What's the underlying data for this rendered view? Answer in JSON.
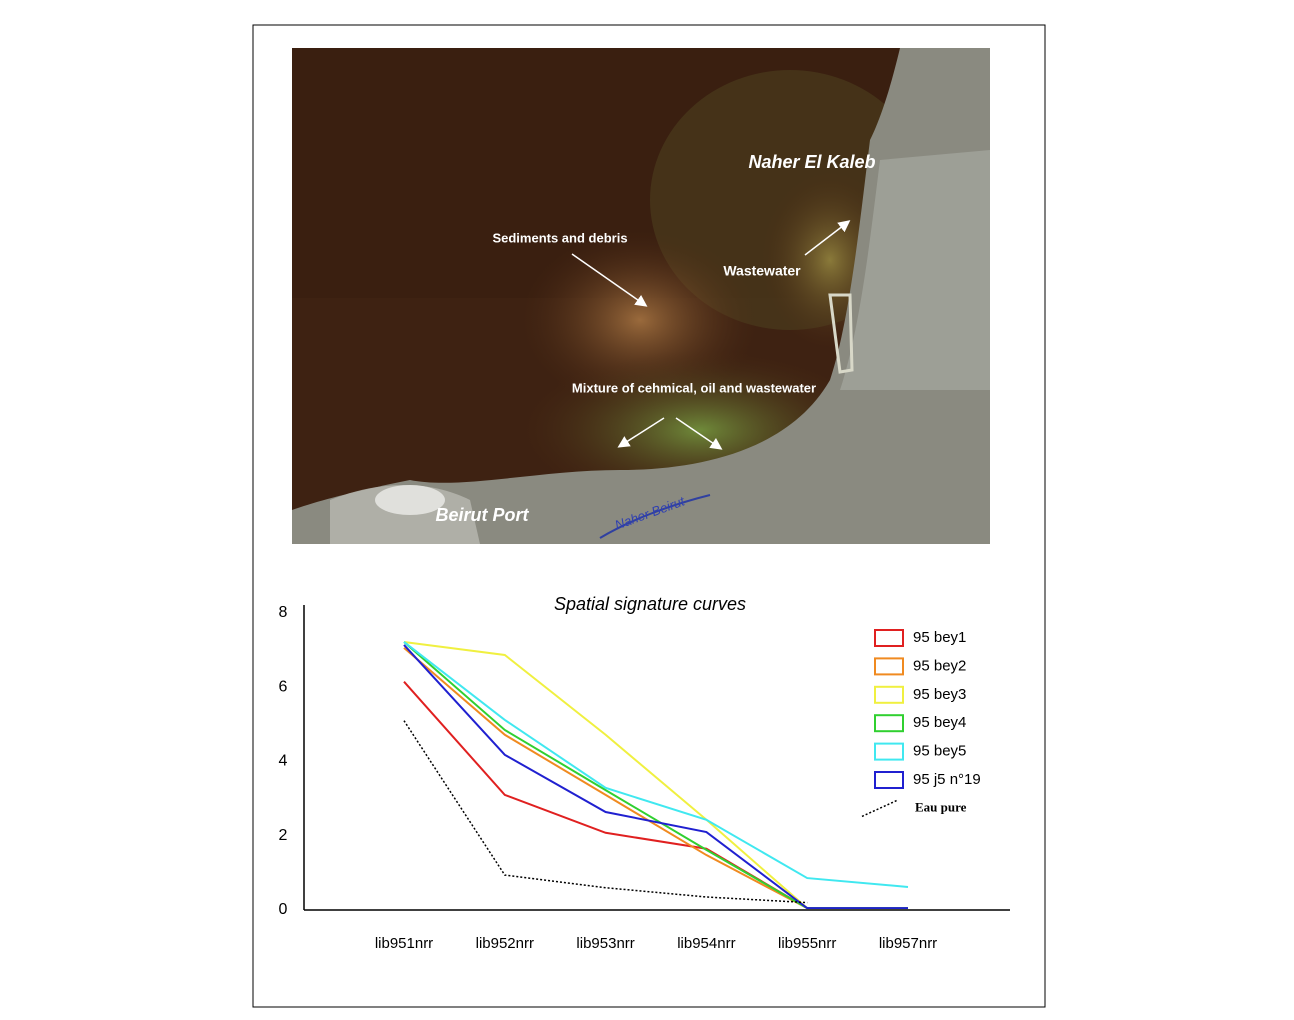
{
  "image_annotations": {
    "naher_el_kaleb": "Naher El Kaleb",
    "sediments": "Sediments and debris",
    "wastewater": "Wastewater",
    "mixture": "Mixture of cehmical, oil and wastewater",
    "beirut_port": "Beirut Port",
    "naher_beirut": "Naher Beirut"
  },
  "chart_data": {
    "type": "line",
    "title": "Spatial signature curves",
    "categories": [
      "lib951nrr",
      "lib952nrr",
      "lib953nrr",
      "lib954nrr",
      "lib955nrr",
      "lib957nrr"
    ],
    "ylim": [
      0,
      8
    ],
    "yticks": [
      0,
      2,
      4,
      6,
      8
    ],
    "grid": false,
    "legend": "right",
    "series": [
      {
        "name": "95 bey1",
        "color": "#e02020",
        "values": [
          6.15,
          3.1,
          2.08,
          1.65,
          0.05,
          0.05
        ]
      },
      {
        "name": "95 bey2",
        "color": "#f08a20",
        "values": [
          7.06,
          4.72,
          3.1,
          1.48,
          0.05,
          0.05
        ]
      },
      {
        "name": "95 bey3",
        "color": "#f0f040",
        "values": [
          7.22,
          6.87,
          4.72,
          2.43,
          0.05,
          0.05
        ]
      },
      {
        "name": "95 bey4",
        "color": "#30d030",
        "values": [
          7.22,
          4.85,
          3.23,
          1.62,
          0.05,
          0.05
        ]
      },
      {
        "name": "95 bey5",
        "color": "#40e8f0",
        "values": [
          7.22,
          5.12,
          3.29,
          2.43,
          0.86,
          0.62
        ]
      },
      {
        "name": "95 j5 n°19",
        "color": "#2020d0",
        "values": [
          7.14,
          4.18,
          2.64,
          2.1,
          0.05,
          0.05
        ]
      },
      {
        "name": "Eau pure",
        "color": "#000000",
        "dash": "dotted",
        "values": [
          5.1,
          0.94,
          0.6,
          0.35,
          0.2,
          null
        ]
      }
    ]
  }
}
